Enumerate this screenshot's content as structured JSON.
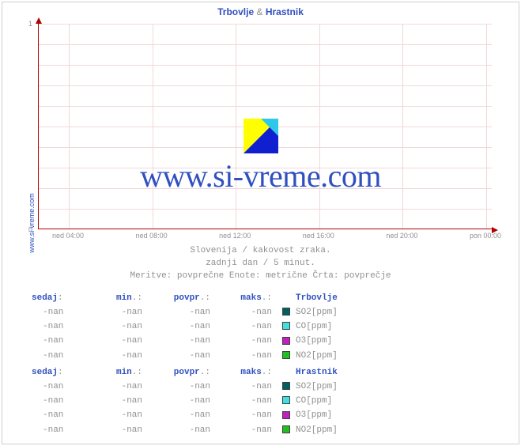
{
  "title_parts": {
    "n1": "Trbovlje",
    "sep": "&",
    "n2": "Hrastnik"
  },
  "vertical_label": "www.si-vreme.com",
  "watermark_text": "www.si-vreme.com",
  "watermark_logo_colors": {
    "tl": "#ffff00",
    "tr": "#30c8e8",
    "bl": "#ffffff",
    "br": "#1020d0"
  },
  "chart": {
    "colors": {
      "axis": "#b00000",
      "grid": "#f0d8d8",
      "tick_text": "#909090",
      "title_text": "#3050c0",
      "caption_text": "#909090",
      "background": "#ffffff",
      "border": "#d0d0d0"
    },
    "ylim": [
      0,
      1
    ],
    "y_ticks": [
      0,
      1
    ],
    "y_gridlines": [
      0.1,
      0.2,
      0.3,
      0.4,
      0.5,
      0.6,
      0.7,
      0.8,
      0.9,
      1.0
    ],
    "x_ticks": [
      "ned 04:00",
      "ned 08:00",
      "ned 12:00",
      "ned 16:00",
      "ned 20:00",
      "pon 00:00"
    ],
    "tick_fontsize": 9,
    "title_fontsize": 12
  },
  "caption": {
    "line1": "Slovenija / kakovost zraka.",
    "line2": "zadnji dan / 5 minut.",
    "line3": "Meritve: povprečne  Enote: metrične  Črta: povprečje"
  },
  "table_headers": {
    "sedaj": "sedaj",
    "min": "min",
    "povpr": "povpr",
    "maks": "maks",
    "punct": ".:",
    "colon": ":"
  },
  "swatch_colors": {
    "SO2": "#006060",
    "CO": "#40e0e0",
    "O3": "#c020c0",
    "NO2": "#20c020"
  },
  "tables": [
    {
      "location": "Trbovlje",
      "rows": [
        {
          "sedaj": "-nan",
          "min": "-nan",
          "povpr": "-nan",
          "maks": "-nan",
          "key": "SO2",
          "label": "SO2[ppm]"
        },
        {
          "sedaj": "-nan",
          "min": "-nan",
          "povpr": "-nan",
          "maks": "-nan",
          "key": "CO",
          "label": "CO[ppm]"
        },
        {
          "sedaj": "-nan",
          "min": "-nan",
          "povpr": "-nan",
          "maks": "-nan",
          "key": "O3",
          "label": "O3[ppm]"
        },
        {
          "sedaj": "-nan",
          "min": "-nan",
          "povpr": "-nan",
          "maks": "-nan",
          "key": "NO2",
          "label": "NO2[ppm]"
        }
      ]
    },
    {
      "location": "Hrastnik",
      "rows": [
        {
          "sedaj": "-nan",
          "min": "-nan",
          "povpr": "-nan",
          "maks": "-nan",
          "key": "SO2",
          "label": "SO2[ppm]"
        },
        {
          "sedaj": "-nan",
          "min": "-nan",
          "povpr": "-nan",
          "maks": "-nan",
          "key": "CO",
          "label": "CO[ppm]"
        },
        {
          "sedaj": "-nan",
          "min": "-nan",
          "povpr": "-nan",
          "maks": "-nan",
          "key": "O3",
          "label": "O3[ppm]"
        },
        {
          "sedaj": "-nan",
          "min": "-nan",
          "povpr": "-nan",
          "maks": "-nan",
          "key": "NO2",
          "label": "NO2[ppm]"
        }
      ]
    }
  ]
}
